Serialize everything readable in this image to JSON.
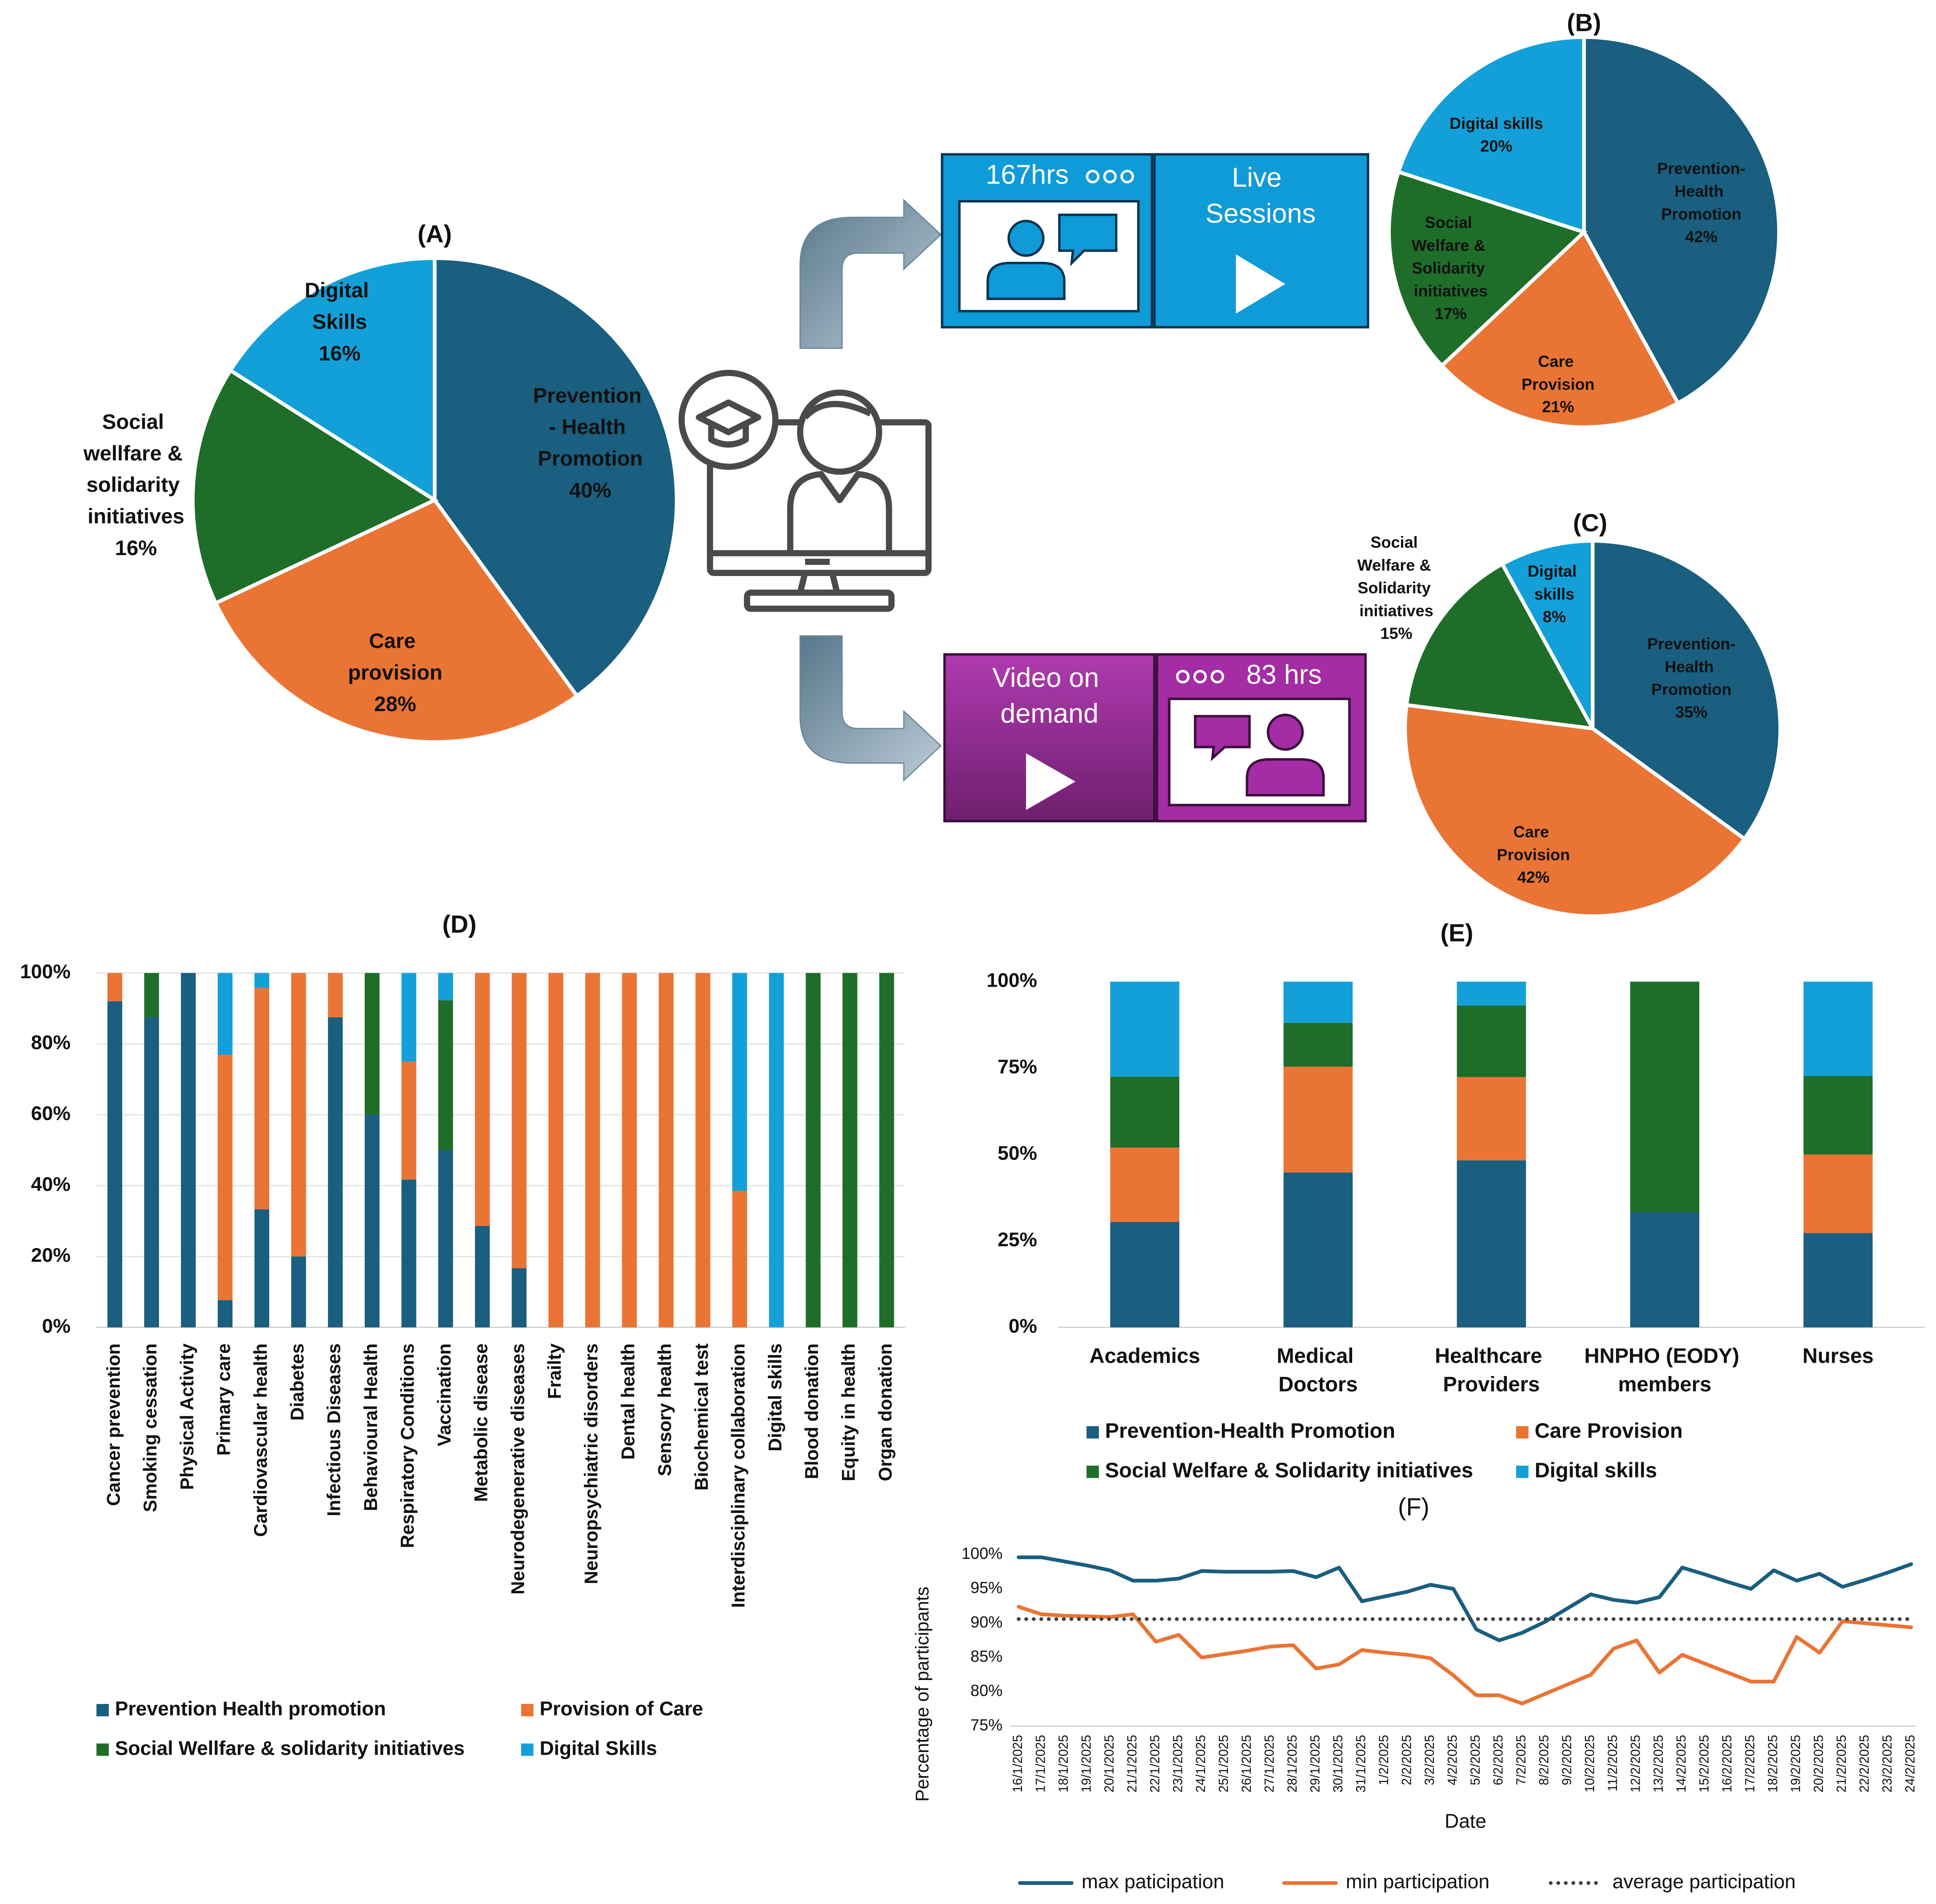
{
  "chart_data": [
    {
      "type": "pie",
      "title": "(A)",
      "categories": [
        "Prevention - Health Promotion",
        "Care provision",
        "Social wellfare & solidarity initiatives",
        "Digital Skills"
      ],
      "values": [
        40,
        28,
        16,
        16
      ],
      "value_labels": [
        "40%",
        "28%",
        "16%",
        "16%"
      ],
      "colors": [
        "#1a5e80",
        "#ea7434",
        "#1e6e2a",
        "#13a0d8"
      ]
    },
    {
      "type": "pie",
      "title": "(B)",
      "categories": [
        "Prevention-Health Promotion",
        "Care Provision",
        "Social Welfare & Solidarity initiatives",
        "Digital skills"
      ],
      "values": [
        42,
        21,
        17,
        20
      ],
      "value_labels": [
        "42%",
        "21%",
        "17%",
        "20%"
      ],
      "colors": [
        "#1a5e80",
        "#ea7434",
        "#1e6e2a",
        "#13a0d8"
      ]
    },
    {
      "type": "pie",
      "title": "(C)",
      "categories": [
        "Prevention-Health Promotion",
        "Care Provision",
        "Social Welfare & Solidarity initiatives",
        "Digital skills"
      ],
      "values": [
        35,
        42,
        15,
        8
      ],
      "value_labels": [
        "35%",
        "42%",
        "15%",
        "8%"
      ],
      "colors": [
        "#1a5e80",
        "#ea7434",
        "#1e6e2a",
        "#13a0d8"
      ]
    },
    {
      "type": "bar",
      "stacked": true,
      "title": "(D)",
      "categories": [
        "Cancer prevention",
        "Smoking cessation",
        "Physical Activity",
        "Primary care",
        "Cardiovascular health",
        "Diabetes",
        "Infectious Diseases",
        "Behavioural Health",
        "Respiratory Conditions",
        "Vaccination",
        "Metabolic disease",
        "Neurodegenerative diseases",
        "Frailty",
        "Neuropsychiatric disorders",
        "Dental health",
        "Sensory health",
        "Biochemical test",
        "Interdisciplinary collaboration",
        "Digital skills",
        "Blood donation",
        "Equity in health",
        "Organ donation"
      ],
      "series": [
        {
          "name": "Prevention Health promotion",
          "color": "#1a5e80",
          "values": [
            92,
            87.5,
            100,
            7.7,
            33.3,
            20,
            87.5,
            60,
            41.7,
            50,
            28.6,
            16.7,
            0,
            0,
            0,
            0,
            0,
            0,
            0,
            0,
            0,
            0
          ]
        },
        {
          "name": "Provision of Care",
          "color": "#ea7434",
          "values": [
            8,
            0,
            0,
            69.2,
            62.5,
            80,
            12.5,
            0,
            33.3,
            0,
            71.4,
            83.3,
            100,
            100,
            100,
            100,
            100,
            38.5,
            0,
            0,
            0,
            0
          ]
        },
        {
          "name": "Social Wellfare & solidarity initiatives",
          "color": "#1e6e2a",
          "values": [
            0,
            12.5,
            0,
            0,
            0,
            0,
            0,
            40,
            0,
            42.3,
            0,
            0,
            0,
            0,
            0,
            0,
            0,
            0,
            0,
            100,
            100,
            100
          ]
        },
        {
          "name": "Digital Skills",
          "color": "#13a0d8",
          "values": [
            0,
            0,
            0,
            23.1,
            4.2,
            0,
            0,
            0,
            25,
            7.7,
            0,
            0,
            0,
            0,
            0,
            0,
            0,
            61.5,
            100,
            0,
            0,
            0
          ]
        }
      ],
      "ylim": [
        0,
        100
      ],
      "yticks": [
        {
          "value": 0,
          "label": "0%"
        },
        {
          "value": 20,
          "label": "20%"
        },
        {
          "value": 40,
          "label": "40%"
        },
        {
          "value": 60,
          "label": "60%"
        },
        {
          "value": 80,
          "label": "80%"
        },
        {
          "value": 100,
          "label": "100%"
        }
      ],
      "grid": true,
      "legend": "bottom"
    },
    {
      "type": "bar",
      "stacked": true,
      "title": "(E)",
      "categories": [
        "Academics",
        "Medical Doctors",
        "Healthcare Providers",
        "HNPHO (EODY) members",
        "Nurses"
      ],
      "series": [
        {
          "name": "Prevention-Health Promotion",
          "color": "#1a5e80",
          "values": [
            30.5,
            44.8,
            48.3,
            33.3,
            27.3
          ]
        },
        {
          "name": "Care Provision",
          "color": "#ea7434",
          "values": [
            21.5,
            30.6,
            24.1,
            0,
            22.7
          ]
        },
        {
          "name": "Social Welfare & Solidarity initiatives",
          "color": "#1e6e2a",
          "values": [
            20.5,
            12.7,
            20.7,
            66.7,
            22.7
          ]
        },
        {
          "name": "Digital skills",
          "color": "#13a0d8",
          "values": [
            27.5,
            11.9,
            6.9,
            0,
            27.3
          ]
        }
      ],
      "ylim": [
        0,
        100
      ],
      "yticks": [
        {
          "value": 0,
          "label": "0%"
        },
        {
          "value": 25,
          "label": "25%"
        },
        {
          "value": 50,
          "label": "50%"
        },
        {
          "value": 75,
          "label": "75%"
        },
        {
          "value": 100,
          "label": "100%"
        }
      ],
      "grid": false,
      "legend": "bottom"
    },
    {
      "type": "line",
      "title": "(F)",
      "x_label": "Date",
      "y_label": "Percentage of participants",
      "x": [
        "16/1/2025",
        "17/1/2025",
        "18/1/2025",
        "19/1/2025",
        "20/1/2025",
        "21/1/2025",
        "22/1/2025",
        "23/1/2025",
        "24/1/2025",
        "25/1/2025",
        "26/1/2025",
        "27/1/2025",
        "28/1/2025",
        "29/1/2025",
        "30/1/2025",
        "31/1/2025",
        "1/2/2025",
        "2/2/2025",
        "3/2/2025",
        "4/2/2025",
        "5/2/2025",
        "6/2/2025",
        "7/2/2025",
        "8/2/2025",
        "9/2/2025",
        "10/2/2025",
        "11/2/2025",
        "12/2/2025",
        "13/2/2025",
        "14/2/2025",
        "15/2/2025",
        "16/2/2025",
        "17/2/2025",
        "18/2/2025",
        "19/2/2025",
        "20/2/2025",
        "21/2/2025",
        "22/2/2025",
        "23/2/2025",
        "24/2/2025"
      ],
      "series": [
        {
          "name": "max paticipation",
          "color": "#1a5e80",
          "style": "solid",
          "values": [
            99.6,
            99.6,
            99,
            98.4,
            97.7,
            96.2,
            96.2,
            96.5,
            97.6,
            97.5,
            97.5,
            97.5,
            97.6,
            96.7,
            98.1,
            93.2,
            93.9,
            94.6,
            95.6,
            95,
            89.1,
            87.5,
            88.6,
            90.2,
            92.2,
            94.2,
            93.4,
            93,
            93.8,
            98.1,
            97.1,
            96,
            95,
            97.7,
            96.2,
            97.2,
            95.3,
            96.3,
            97.4,
            98.6
          ]
        },
        {
          "name": "min participation",
          "color": "#ea7434",
          "style": "solid",
          "values": [
            92.4,
            91.3,
            91.1,
            91,
            90.9,
            91.3,
            87.3,
            88.3,
            85,
            85.5,
            86,
            86.6,
            86.8,
            83.4,
            84,
            86.1,
            85.7,
            85.4,
            84.9,
            82.4,
            79.5,
            79.5,
            78.3,
            79.7,
            81.1,
            82.5,
            86.3,
            87.5,
            82.8,
            85.4,
            84.1,
            82.8,
            81.5,
            81.5,
            88,
            85.7,
            90.3,
            90,
            89.7,
            89.4
          ]
        },
        {
          "name": "average participation",
          "color": "#404040",
          "style": "dotted",
          "values": [
            90.6,
            90.6,
            90.6,
            90.6,
            90.6,
            90.6,
            90.6,
            90.6,
            90.6,
            90.6,
            90.6,
            90.6,
            90.6,
            90.6,
            90.6,
            90.6,
            90.6,
            90.6,
            90.6,
            90.6,
            90.6,
            90.6,
            90.6,
            90.6,
            90.6,
            90.6,
            90.6,
            90.6,
            90.6,
            90.6,
            90.6,
            90.6,
            90.6,
            90.6,
            90.6,
            90.6,
            90.6,
            90.6,
            90.6,
            90.6
          ]
        }
      ],
      "ylim": [
        75,
        100
      ],
      "yticks": [
        {
          "value": 75,
          "label": "75%"
        },
        {
          "value": 80,
          "label": "80%"
        },
        {
          "value": 85,
          "label": "85%"
        },
        {
          "value": 90,
          "label": "90%"
        },
        {
          "value": 95,
          "label": "95%"
        },
        {
          "value": 100,
          "label": "100%"
        }
      ],
      "grid": false,
      "legend": "bottom"
    }
  ],
  "diagram": {
    "live_sessions": {
      "hours": "167hrs",
      "label": "Live Sessions"
    },
    "video_on_demand": {
      "label": "Video on demand",
      "hours": "83 hrs"
    }
  }
}
